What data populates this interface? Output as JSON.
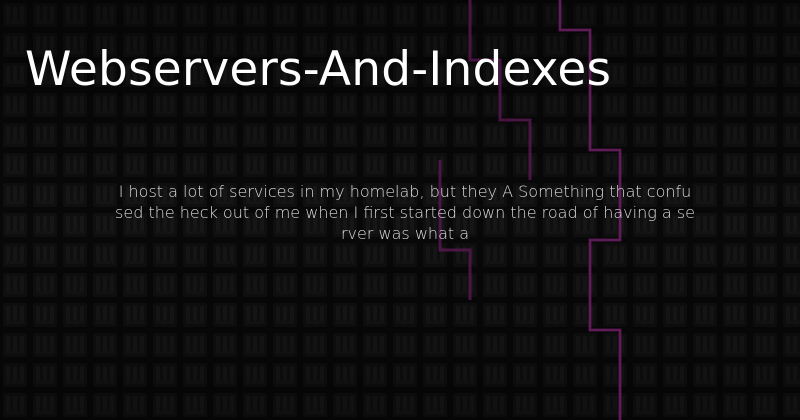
{
  "colors": {
    "background": "#0c0c0c",
    "grid_tile": "#1c1c1c",
    "grid_tile_light": "#232323",
    "accent": "#7a1f6e",
    "title_text": "#ffffff",
    "body_text": "#dcdcdc"
  },
  "title": "Webservers-And-Indexes",
  "excerpt": "I host a lot of services in my homelab, but they A  Something that confused the heck out of me when I first started down the road of having a server was what a"
}
